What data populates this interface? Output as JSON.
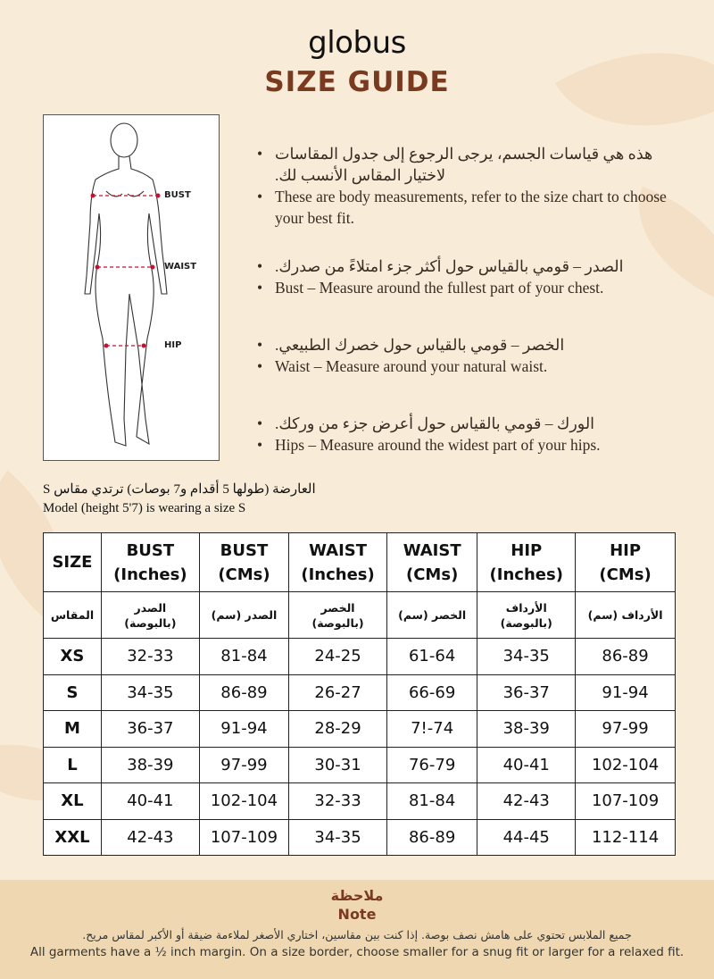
{
  "brand": {
    "logo": "globus",
    "title": "SIZE GUIDE"
  },
  "figure": {
    "labels": {
      "bust": "BUST",
      "waist": "WAIST",
      "hip": "HIP"
    },
    "accent": "#c8102e"
  },
  "bullets": [
    {
      "ar": "هذه هي قياسات الجسم، يرجى الرجوع إلى جدول المقاسات لاختيار المقاس الأنسب لك.",
      "en": "These are body measurements, refer to the size chart to choose your best fit."
    },
    {
      "ar": "الصدر – قومي بالقياس حول أكثر جزء امتلاءً من صدرك.",
      "en": "Bust – Measure around the fullest part of your chest."
    },
    {
      "ar": "الخصر – قومي بالقياس حول خصرك الطبيعي.",
      "en": "Waist – Measure around your natural waist."
    },
    {
      "ar": "الورك – قومي بالقياس حول أعرض جزء من وركك.",
      "en": "Hips – Measure around the widest part of your hips."
    }
  ],
  "model": {
    "ar": "العارضة (طولها 5 أقدام و7 بوصات) ترتدي مقاس S",
    "en": "Model (height 5'7) is wearing a size S"
  },
  "table": {
    "headers": [
      [
        "SIZE",
        ""
      ],
      [
        "BUST",
        "(Inches)"
      ],
      [
        "BUST",
        "(CMs)"
      ],
      [
        "WAIST",
        "(Inches)"
      ],
      [
        "WAIST",
        "(CMs)"
      ],
      [
        "HIP",
        "(Inches)"
      ],
      [
        "HIP",
        "(CMs)"
      ]
    ],
    "headers_ar": [
      [
        "المقاس",
        ""
      ],
      [
        "الصدر",
        "(بالبوصة)"
      ],
      [
        "الصدر (سم)",
        ""
      ],
      [
        "الخصر",
        "(بالبوصة)"
      ],
      [
        "الخصر (سم)",
        ""
      ],
      [
        "الأرداف",
        "(بالبوصة)"
      ],
      [
        "الأرداف (سم)",
        ""
      ]
    ],
    "rows": [
      [
        "XS",
        "32-33",
        "81-84",
        "24-25",
        "61-64",
        "34-35",
        "86-89"
      ],
      [
        "S",
        "34-35",
        "86-89",
        "26-27",
        "66-69",
        "36-37",
        "91-94"
      ],
      [
        "M",
        "36-37",
        "91-94",
        "28-29",
        "7!-74",
        "38-39",
        "97-99"
      ],
      [
        "L",
        "38-39",
        "97-99",
        "30-31",
        "76-79",
        "40-41",
        "102-104"
      ],
      [
        "XL",
        "40-41",
        "102-104",
        "32-33",
        "81-84",
        "42-43",
        "107-109"
      ],
      [
        "XXL",
        "42-43",
        "107-109",
        "34-35",
        "86-89",
        "44-45",
        "112-114"
      ]
    ]
  },
  "note": {
    "title_ar": "ملاحظة",
    "title_en": "Note",
    "text_ar": "جميع الملابس تحتوي على هامش نصف بوصة. إذا كنت بين مقاسين، اختاري الأصغر لملاءمة ضيقة أو الأكبر لمقاس مريح.",
    "text_en": "All garments have a ½ inch margin. On a size border, choose smaller for a snug fit or larger for a relaxed fit."
  },
  "colors": {
    "background": "#f8ecd9",
    "title": "#7a3a1f",
    "note_band": "#efd8b1"
  }
}
